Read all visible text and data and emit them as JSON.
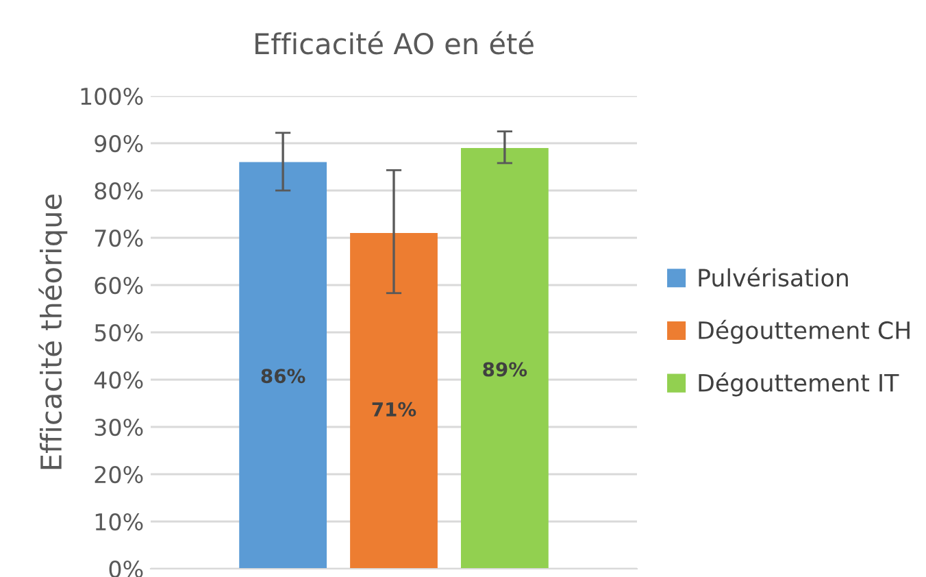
{
  "chart_data": {
    "type": "bar",
    "title": "Efficacité AO en été",
    "ylabel": "Efficacité théorique",
    "categories": [
      null
    ],
    "series": [
      {
        "name": "Pulvérisation",
        "color": "#5b9bd5",
        "values": [
          86
        ],
        "errors": [
          [
            80,
            92.2
          ]
        ],
        "value_labels": [
          "86%"
        ]
      },
      {
        "name": "Dégouttement CH",
        "color": "#ed7d31",
        "values": [
          71
        ],
        "errors": [
          [
            58.3,
            84.3
          ]
        ],
        "value_labels": [
          "71%"
        ]
      },
      {
        "name": "Dégouttement IT",
        "color": "#92d050",
        "values": [
          89
        ],
        "errors": [
          [
            85.8,
            92.5
          ]
        ],
        "value_labels": [
          "89%"
        ]
      }
    ],
    "ylim": [
      0,
      100
    ],
    "yticks": [
      {
        "value": 0,
        "label": "0%"
      },
      {
        "value": 10,
        "label": "10%"
      },
      {
        "value": 20,
        "label": "20%"
      },
      {
        "value": 30,
        "label": "30%"
      },
      {
        "value": 40,
        "label": "40%"
      },
      {
        "value": 50,
        "label": "50%"
      },
      {
        "value": 60,
        "label": "60%"
      },
      {
        "value": 70,
        "label": "70%"
      },
      {
        "value": 80,
        "label": "80%"
      },
      {
        "value": 90,
        "label": "90%"
      },
      {
        "value": 100,
        "label": "100%"
      }
    ],
    "grid": "y",
    "legend": "right"
  }
}
